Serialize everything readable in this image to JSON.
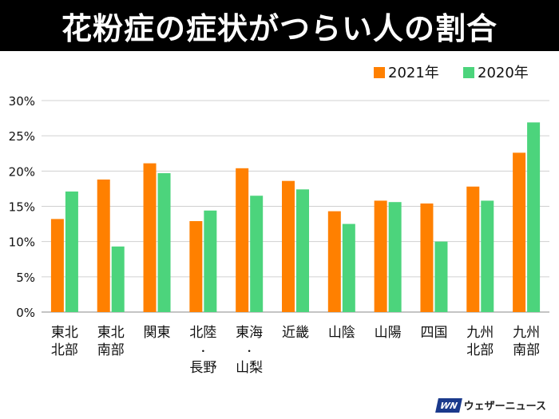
{
  "title": "花粉症の症状がつらい人の割合",
  "logo": {
    "mark": "WN",
    "text": "ウェザーニュース"
  },
  "chart_data": {
    "type": "bar",
    "categories": [
      [
        "東北",
        "北部"
      ],
      [
        "東北",
        "南部"
      ],
      [
        "関東"
      ],
      [
        "北陸",
        "・",
        "長野"
      ],
      [
        "東海",
        "・",
        "山梨"
      ],
      [
        "近畿"
      ],
      [
        "山陰"
      ],
      [
        "山陽"
      ],
      [
        "四国"
      ],
      [
        "九州",
        "北部"
      ],
      [
        "九州",
        "南部"
      ]
    ],
    "series": [
      {
        "name": "2021年",
        "color": "#ff8000",
        "values": [
          13.2,
          18.8,
          21.1,
          12.9,
          20.4,
          18.6,
          14.3,
          15.8,
          15.4,
          17.8,
          22.6
        ]
      },
      {
        "name": "2020年",
        "color": "#4cd47c",
        "values": [
          17.1,
          9.3,
          19.7,
          14.4,
          16.5,
          17.4,
          12.5,
          15.6,
          10.0,
          15.8,
          26.9
        ]
      }
    ],
    "yticks": [
      "0%",
      "5%",
      "10%",
      "15%",
      "20%",
      "25%",
      "30%"
    ],
    "ylim": [
      0,
      30
    ],
    "grid": true,
    "legend": "top-right"
  }
}
